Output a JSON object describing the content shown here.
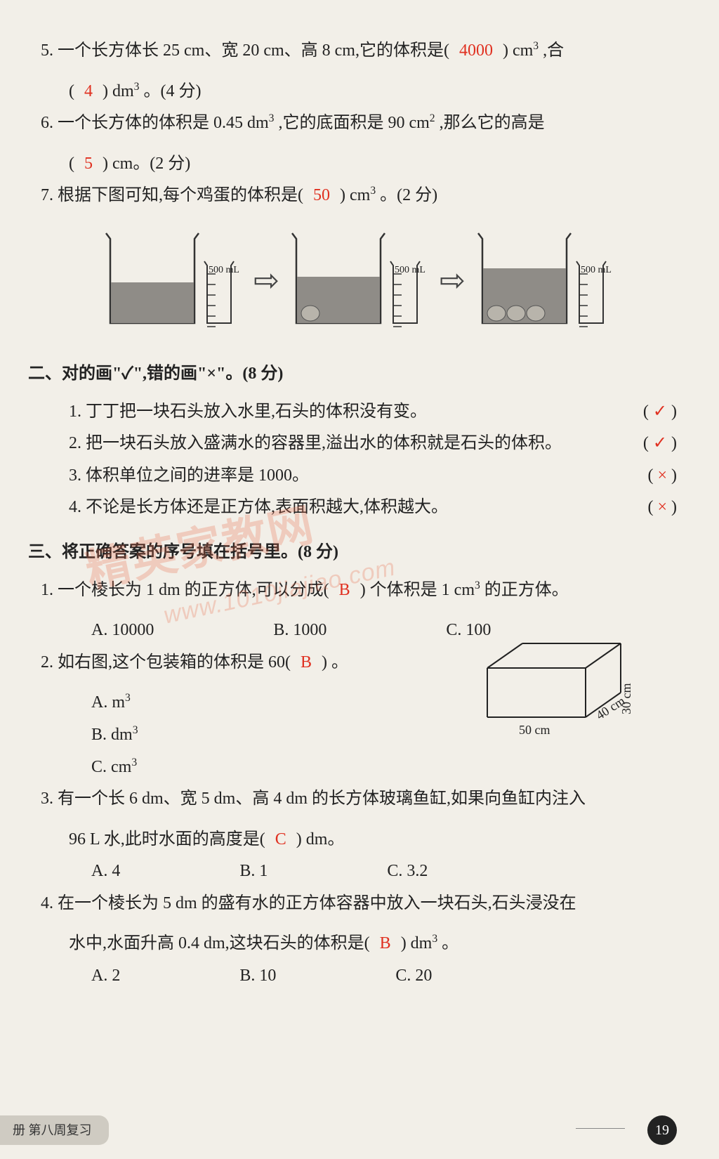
{
  "fill": {
    "q5": {
      "num": "5.",
      "text_a": "一个长方体长 25 cm、宽 20 cm、高 8 cm,它的体积是(",
      "ans1": "4000",
      "text_b": ") cm",
      "sup1": "3",
      "text_c": ",合",
      "line2_a": "(",
      "ans2": "4",
      "line2_b": ") dm",
      "sup2": "3",
      "line2_c": "。(4 分)"
    },
    "q6": {
      "num": "6.",
      "text_a": "一个长方体的体积是 0.45 dm",
      "sup1": "3",
      "text_b": ",它的底面积是 90 cm",
      "sup2": "2",
      "text_c": ",那么它的高是",
      "line2_a": "(",
      "ans": "5",
      "line2_b": ") cm。(2 分)"
    },
    "q7": {
      "num": "7.",
      "text_a": "根据下图可知,每个鸡蛋的体积是(",
      "ans": "50",
      "text_b": ") cm",
      "sup": "3",
      "text_c": "。(2 分)"
    }
  },
  "beakers": {
    "label": "500 mL",
    "fill_color": "#8f8c87",
    "outline": "#333",
    "water_levels": [
      58,
      66,
      78
    ],
    "eggs": [
      0,
      1,
      3
    ],
    "arrow": "⇨"
  },
  "section2": {
    "head": "二、对的画\"✓\",错的画\"×\"。(8 分)",
    "items": [
      {
        "num": "1.",
        "text": "丁丁把一块石头放入水里,石头的体积没有变。",
        "mark": "✓"
      },
      {
        "num": "2.",
        "text": "把一块石头放入盛满水的容器里,溢出水的体积就是石头的体积。",
        "mark": "✓"
      },
      {
        "num": "3.",
        "text": "体积单位之间的进率是 1000。",
        "mark": "×"
      },
      {
        "num": "4.",
        "text": "不论是长方体还是正方体,表面积越大,体积越大。",
        "mark": "×"
      }
    ]
  },
  "section3": {
    "head": "三、将正确答案的序号填在括号里。(8 分)",
    "q1": {
      "num": "1.",
      "text_a": "一个棱长为 1 dm 的正方体,可以分成(",
      "ans": "B",
      "text_b": ") 个体积是 1 cm",
      "sup": "3",
      "text_c": " 的正方体。",
      "optA": "A. 10000",
      "optB": "B. 1000",
      "optC": "C. 100"
    },
    "q2": {
      "num": "2.",
      "text_a": "如右图,这个包装箱的体积是 60(",
      "ans": "B",
      "text_b": ") 。",
      "optA": "A. m",
      "supA": "3",
      "optB": "B. dm",
      "supB": "3",
      "optC": "C. cm",
      "supC": "3",
      "box": {
        "l": "50 cm",
        "w": "40 cm",
        "h": "30 cm"
      }
    },
    "q3": {
      "num": "3.",
      "text": "有一个长 6 dm、宽 5 dm、高 4 dm 的长方体玻璃鱼缸,如果向鱼缸内注入",
      "line2_a": "96 L 水,此时水面的高度是(",
      "ans": "C",
      "line2_b": ") dm。",
      "optA": "A. 4",
      "optB": "B. 1",
      "optC": "C. 3.2"
    },
    "q4": {
      "num": "4.",
      "text": "在一个棱长为 5 dm 的盛有水的正方体容器中放入一块石头,石头浸没在",
      "line2_a": "水中,水面升高 0.4 dm,这块石头的体积是(",
      "ans": "B",
      "line2_b": ") dm",
      "sup": "3",
      "line2_c": "。",
      "optA": "A. 2",
      "optB": "B. 10",
      "optC": "C. 20"
    }
  },
  "footer": {
    "left": "册  第八周复习",
    "page": "19"
  },
  "watermark": {
    "big": "精英家教网",
    "small": "www.1010jiajiao.com"
  }
}
